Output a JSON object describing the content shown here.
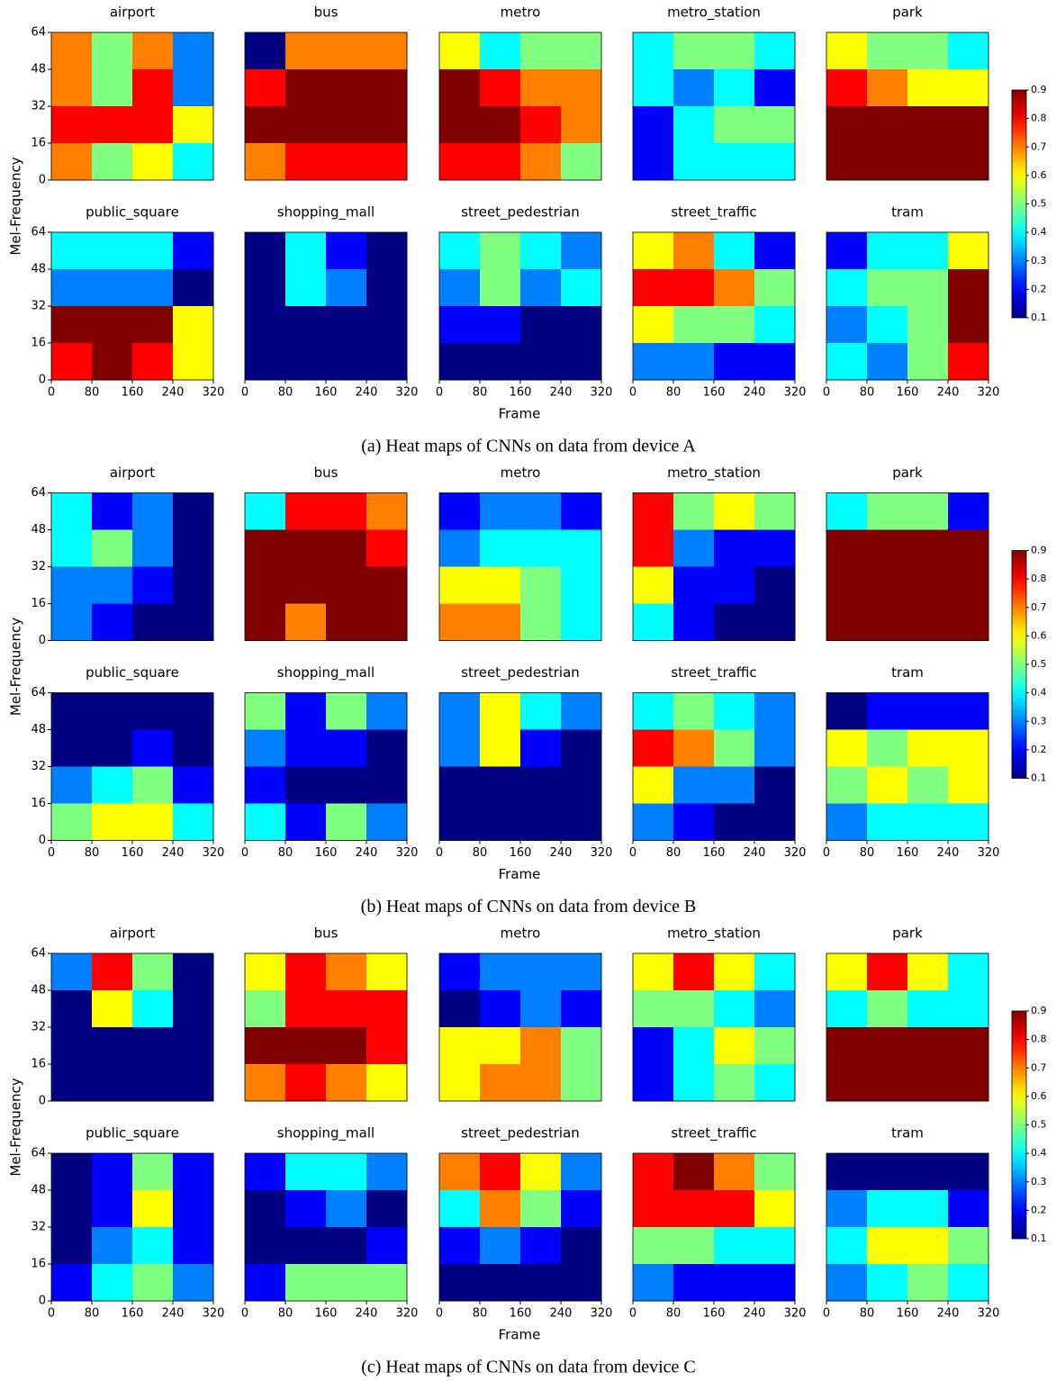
{
  "xlim": [
    0,
    320
  ],
  "ylim": [
    0,
    64
  ],
  "xticks": [
    0,
    80,
    160,
    240,
    320
  ],
  "yticks": [
    0,
    16,
    32,
    48,
    64
  ],
  "xlabel": "Frame",
  "ylabel": "Mel-Frequency",
  "panels": [
    {
      "caption": "(a) Heat maps of CNNs on data from device A",
      "colorbar": {
        "ylim": [
          0.1,
          0.9
        ],
        "yticks": [
          0.1,
          0.2,
          0.3,
          0.4,
          0.5,
          0.6,
          0.7,
          0.8,
          0.9
        ]
      },
      "charts": [
        {
          "type": "heatmap",
          "title": "airport",
          "values": [
            [
              0.7,
              0.5,
              0.7,
              0.3
            ],
            [
              0.7,
              0.5,
              0.8,
              0.3
            ],
            [
              0.8,
              0.8,
              0.8,
              0.6
            ],
            [
              0.7,
              0.5,
              0.6,
              0.4
            ]
          ]
        },
        {
          "type": "heatmap",
          "title": "bus",
          "values": [
            [
              0.1,
              0.7,
              0.7,
              0.7
            ],
            [
              0.8,
              0.9,
              0.9,
              0.9
            ],
            [
              0.9,
              0.9,
              0.9,
              0.9
            ],
            [
              0.7,
              0.8,
              0.8,
              0.8
            ]
          ]
        },
        {
          "type": "heatmap",
          "title": "metro",
          "values": [
            [
              0.6,
              0.4,
              0.5,
              0.5
            ],
            [
              0.9,
              0.8,
              0.7,
              0.7
            ],
            [
              0.9,
              0.9,
              0.8,
              0.7
            ],
            [
              0.8,
              0.8,
              0.7,
              0.5
            ]
          ]
        },
        {
          "type": "heatmap",
          "title": "metro_station",
          "values": [
            [
              0.4,
              0.5,
              0.5,
              0.4
            ],
            [
              0.4,
              0.3,
              0.4,
              0.2
            ],
            [
              0.2,
              0.4,
              0.5,
              0.5
            ],
            [
              0.2,
              0.4,
              0.4,
              0.4
            ]
          ]
        },
        {
          "type": "heatmap",
          "title": "park",
          "values": [
            [
              0.6,
              0.5,
              0.5,
              0.4
            ],
            [
              0.8,
              0.7,
              0.6,
              0.6
            ],
            [
              0.9,
              0.9,
              0.9,
              0.9
            ],
            [
              0.9,
              0.9,
              0.9,
              0.9
            ]
          ]
        },
        {
          "type": "heatmap",
          "title": "public_square",
          "values": [
            [
              0.4,
              0.4,
              0.4,
              0.2
            ],
            [
              0.3,
              0.3,
              0.3,
              0.1
            ],
            [
              0.9,
              0.9,
              0.9,
              0.6
            ],
            [
              0.8,
              0.9,
              0.8,
              0.6
            ]
          ]
        },
        {
          "type": "heatmap",
          "title": "shopping_mall",
          "values": [
            [
              0.1,
              0.4,
              0.2,
              0.1
            ],
            [
              0.1,
              0.4,
              0.3,
              0.1
            ],
            [
              0.1,
              0.1,
              0.1,
              0.1
            ],
            [
              0.1,
              0.1,
              0.1,
              0.1
            ]
          ]
        },
        {
          "type": "heatmap",
          "title": "street_pedestrian",
          "values": [
            [
              0.4,
              0.5,
              0.4,
              0.3
            ],
            [
              0.3,
              0.5,
              0.3,
              0.4
            ],
            [
              0.2,
              0.2,
              0.1,
              0.1
            ],
            [
              0.1,
              0.1,
              0.1,
              0.1
            ]
          ]
        },
        {
          "type": "heatmap",
          "title": "street_traffic",
          "values": [
            [
              0.6,
              0.7,
              0.4,
              0.2
            ],
            [
              0.8,
              0.8,
              0.7,
              0.5
            ],
            [
              0.6,
              0.5,
              0.5,
              0.4
            ],
            [
              0.3,
              0.3,
              0.2,
              0.2
            ]
          ]
        },
        {
          "type": "heatmap",
          "title": "tram",
          "values": [
            [
              0.2,
              0.4,
              0.4,
              0.6
            ],
            [
              0.4,
              0.5,
              0.5,
              0.9
            ],
            [
              0.3,
              0.4,
              0.5,
              0.9
            ],
            [
              0.4,
              0.3,
              0.5,
              0.8
            ]
          ]
        }
      ]
    },
    {
      "caption": "(b) Heat maps of CNNs on data from device B",
      "colorbar": {
        "ylim": [
          0.1,
          0.9
        ],
        "yticks": [
          0.1,
          0.2,
          0.3,
          0.4,
          0.5,
          0.6,
          0.7,
          0.8,
          0.9
        ]
      },
      "charts": [
        {
          "type": "heatmap",
          "title": "airport",
          "values": [
            [
              0.4,
              0.2,
              0.3,
              0.1
            ],
            [
              0.4,
              0.5,
              0.3,
              0.1
            ],
            [
              0.3,
              0.3,
              0.2,
              0.1
            ],
            [
              0.3,
              0.2,
              0.1,
              0.1
            ]
          ]
        },
        {
          "type": "heatmap",
          "title": "bus",
          "values": [
            [
              0.4,
              0.8,
              0.8,
              0.7
            ],
            [
              0.9,
              0.9,
              0.9,
              0.8
            ],
            [
              0.9,
              0.9,
              0.9,
              0.9
            ],
            [
              0.9,
              0.7,
              0.9,
              0.9
            ]
          ]
        },
        {
          "type": "heatmap",
          "title": "metro",
          "values": [
            [
              0.2,
              0.3,
              0.3,
              0.2
            ],
            [
              0.3,
              0.4,
              0.4,
              0.4
            ],
            [
              0.6,
              0.6,
              0.5,
              0.4
            ],
            [
              0.7,
              0.7,
              0.5,
              0.4
            ]
          ]
        },
        {
          "type": "heatmap",
          "title": "metro_station",
          "values": [
            [
              0.8,
              0.5,
              0.6,
              0.5
            ],
            [
              0.8,
              0.3,
              0.2,
              0.2
            ],
            [
              0.6,
              0.2,
              0.2,
              0.1
            ],
            [
              0.4,
              0.2,
              0.1,
              0.1
            ]
          ]
        },
        {
          "type": "heatmap",
          "title": "park",
          "values": [
            [
              0.4,
              0.5,
              0.5,
              0.2
            ],
            [
              0.9,
              0.9,
              0.9,
              0.9
            ],
            [
              0.9,
              0.9,
              0.9,
              0.9
            ],
            [
              0.9,
              0.9,
              0.9,
              0.9
            ]
          ]
        },
        {
          "type": "heatmap",
          "title": "public_square",
          "values": [
            [
              0.1,
              0.1,
              0.1,
              0.1
            ],
            [
              0.1,
              0.1,
              0.2,
              0.1
            ],
            [
              0.3,
              0.4,
              0.5,
              0.2
            ],
            [
              0.5,
              0.6,
              0.6,
              0.4
            ]
          ]
        },
        {
          "type": "heatmap",
          "title": "shopping_mall",
          "values": [
            [
              0.5,
              0.2,
              0.5,
              0.3
            ],
            [
              0.3,
              0.2,
              0.2,
              0.1
            ],
            [
              0.2,
              0.1,
              0.1,
              0.1
            ],
            [
              0.4,
              0.2,
              0.5,
              0.3
            ]
          ]
        },
        {
          "type": "heatmap",
          "title": "street_pedestrian",
          "values": [
            [
              0.3,
              0.6,
              0.4,
              0.3
            ],
            [
              0.3,
              0.6,
              0.2,
              0.1
            ],
            [
              0.1,
              0.1,
              0.1,
              0.1
            ],
            [
              0.1,
              0.1,
              0.1,
              0.1
            ]
          ]
        },
        {
          "type": "heatmap",
          "title": "street_traffic",
          "values": [
            [
              0.4,
              0.5,
              0.4,
              0.3
            ],
            [
              0.8,
              0.7,
              0.5,
              0.3
            ],
            [
              0.6,
              0.3,
              0.3,
              0.1
            ],
            [
              0.3,
              0.2,
              0.1,
              0.1
            ]
          ]
        },
        {
          "type": "heatmap",
          "title": "tram",
          "values": [
            [
              0.1,
              0.2,
              0.2,
              0.2
            ],
            [
              0.6,
              0.5,
              0.6,
              0.6
            ],
            [
              0.5,
              0.6,
              0.5,
              0.6
            ],
            [
              0.3,
              0.4,
              0.4,
              0.4
            ]
          ]
        }
      ]
    },
    {
      "caption": "(c) Heat maps of CNNs on data from device C",
      "colorbar": {
        "ylim": [
          0.1,
          0.9
        ],
        "yticks": [
          0.1,
          0.2,
          0.3,
          0.4,
          0.5,
          0.6,
          0.7,
          0.8,
          0.9
        ]
      },
      "charts": [
        {
          "type": "heatmap",
          "title": "airport",
          "values": [
            [
              0.3,
              0.8,
              0.5,
              0.1
            ],
            [
              0.1,
              0.6,
              0.4,
              0.1
            ],
            [
              0.1,
              0.1,
              0.1,
              0.1
            ],
            [
              0.1,
              0.1,
              0.1,
              0.1
            ]
          ]
        },
        {
          "type": "heatmap",
          "title": "bus",
          "values": [
            [
              0.6,
              0.8,
              0.7,
              0.6
            ],
            [
              0.5,
              0.8,
              0.8,
              0.8
            ],
            [
              0.9,
              0.9,
              0.9,
              0.8
            ],
            [
              0.7,
              0.8,
              0.7,
              0.6
            ]
          ]
        },
        {
          "type": "heatmap",
          "title": "metro",
          "values": [
            [
              0.2,
              0.3,
              0.3,
              0.3
            ],
            [
              0.1,
              0.2,
              0.3,
              0.2
            ],
            [
              0.6,
              0.6,
              0.7,
              0.5
            ],
            [
              0.6,
              0.7,
              0.7,
              0.5
            ]
          ]
        },
        {
          "type": "heatmap",
          "title": "metro_station",
          "values": [
            [
              0.6,
              0.8,
              0.6,
              0.4
            ],
            [
              0.5,
              0.5,
              0.4,
              0.3
            ],
            [
              0.2,
              0.4,
              0.6,
              0.5
            ],
            [
              0.2,
              0.4,
              0.5,
              0.4
            ]
          ]
        },
        {
          "type": "heatmap",
          "title": "park",
          "values": [
            [
              0.6,
              0.8,
              0.6,
              0.4
            ],
            [
              0.4,
              0.5,
              0.4,
              0.4
            ],
            [
              0.9,
              0.9,
              0.9,
              0.9
            ],
            [
              0.9,
              0.9,
              0.9,
              0.9
            ]
          ]
        },
        {
          "type": "heatmap",
          "title": "public_square",
          "values": [
            [
              0.1,
              0.2,
              0.5,
              0.2
            ],
            [
              0.1,
              0.2,
              0.6,
              0.2
            ],
            [
              0.1,
              0.3,
              0.4,
              0.2
            ],
            [
              0.2,
              0.4,
              0.5,
              0.3
            ]
          ]
        },
        {
          "type": "heatmap",
          "title": "shopping_mall",
          "values": [
            [
              0.2,
              0.4,
              0.4,
              0.3
            ],
            [
              0.1,
              0.2,
              0.3,
              0.1
            ],
            [
              0.1,
              0.1,
              0.1,
              0.2
            ],
            [
              0.2,
              0.5,
              0.5,
              0.5
            ]
          ]
        },
        {
          "type": "heatmap",
          "title": "street_pedestrian",
          "values": [
            [
              0.7,
              0.8,
              0.6,
              0.3
            ],
            [
              0.4,
              0.7,
              0.5,
              0.2
            ],
            [
              0.2,
              0.3,
              0.2,
              0.1
            ],
            [
              0.1,
              0.1,
              0.1,
              0.1
            ]
          ]
        },
        {
          "type": "heatmap",
          "title": "street_traffic",
          "values": [
            [
              0.8,
              0.9,
              0.7,
              0.5
            ],
            [
              0.8,
              0.8,
              0.8,
              0.6
            ],
            [
              0.5,
              0.5,
              0.4,
              0.4
            ],
            [
              0.3,
              0.2,
              0.2,
              0.2
            ]
          ]
        },
        {
          "type": "heatmap",
          "title": "tram",
          "values": [
            [
              0.1,
              0.1,
              0.1,
              0.1
            ],
            [
              0.3,
              0.4,
              0.4,
              0.2
            ],
            [
              0.4,
              0.6,
              0.6,
              0.5
            ],
            [
              0.3,
              0.4,
              0.5,
              0.4
            ]
          ]
        }
      ]
    }
  ]
}
